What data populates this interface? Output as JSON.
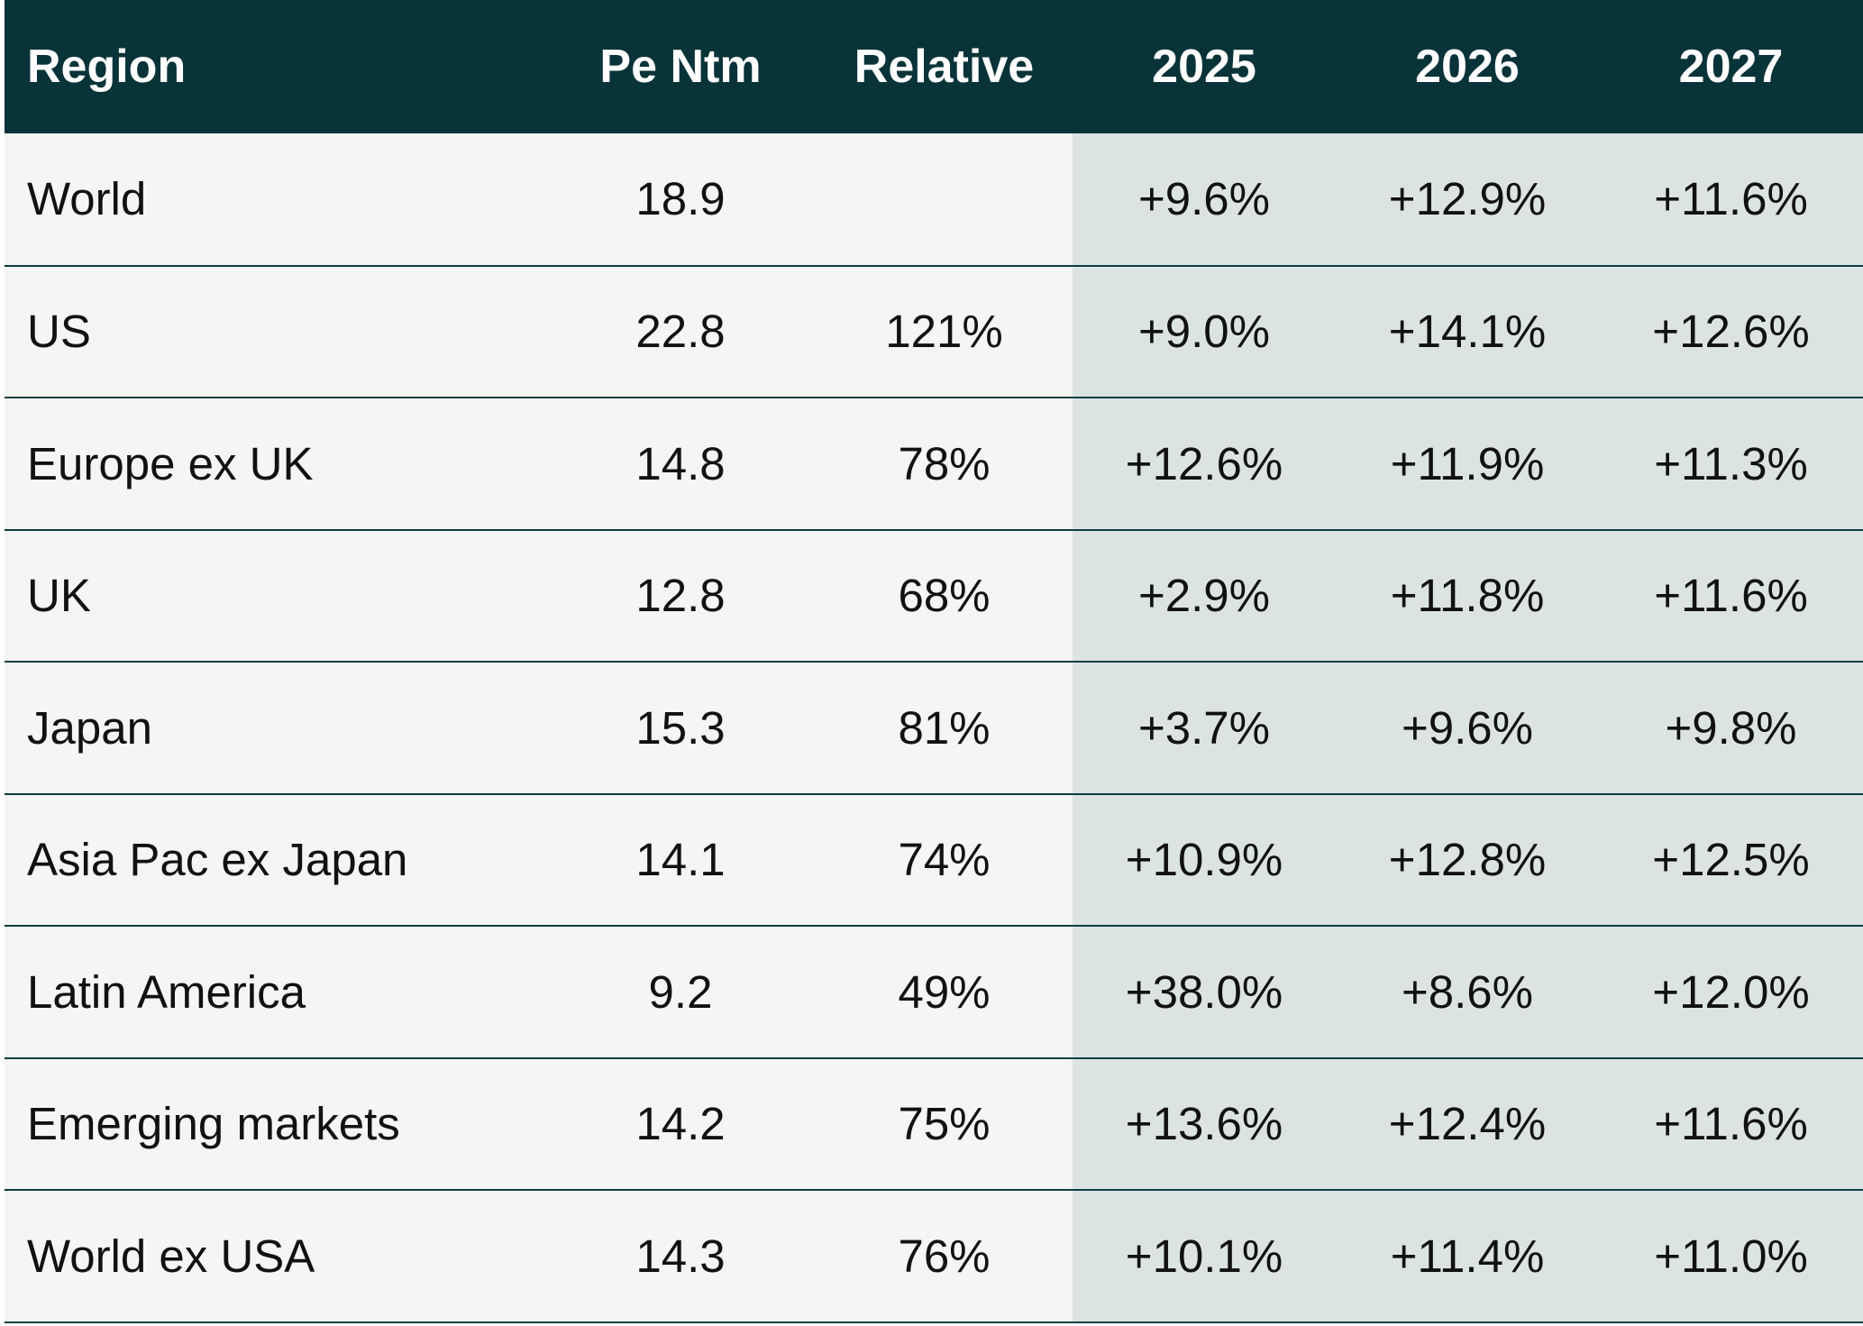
{
  "chart_data": {
    "type": "table",
    "columns": [
      "Region",
      "Pe Ntm",
      "Relative",
      "2025",
      "2026",
      "2027"
    ],
    "rows": [
      {
        "region": "World",
        "pe_ntm": "18.9",
        "relative": "",
        "y2025": "+9.6%",
        "y2026": "+12.9%",
        "y2027": "+11.6%"
      },
      {
        "region": "US",
        "pe_ntm": "22.8",
        "relative": "121%",
        "y2025": "+9.0%",
        "y2026": "+14.1%",
        "y2027": "+12.6%"
      },
      {
        "region": "Europe ex UK",
        "pe_ntm": "14.8",
        "relative": "78%",
        "y2025": "+12.6%",
        "y2026": "+11.9%",
        "y2027": "+11.3%"
      },
      {
        "region": "UK",
        "pe_ntm": "12.8",
        "relative": "68%",
        "y2025": "+2.9%",
        "y2026": "+11.8%",
        "y2027": "+11.6%"
      },
      {
        "region": "Japan",
        "pe_ntm": "15.3",
        "relative": "81%",
        "y2025": "+3.7%",
        "y2026": "+9.6%",
        "y2027": "+9.8%"
      },
      {
        "region": "Asia Pac ex Japan",
        "pe_ntm": "14.1",
        "relative": "74%",
        "y2025": "+10.9%",
        "y2026": "+12.8%",
        "y2027": "+12.5%"
      },
      {
        "region": "Latin America",
        "pe_ntm": "9.2",
        "relative": "49%",
        "y2025": "+38.0%",
        "y2026": "+8.6%",
        "y2027": "+12.0%"
      },
      {
        "region": "Emerging markets",
        "pe_ntm": "14.2",
        "relative": "75%",
        "y2025": "+13.6%",
        "y2026": "+12.4%",
        "y2027": "+11.6%"
      },
      {
        "region": "World ex USA",
        "pe_ntm": "14.3",
        "relative": "76%",
        "y2025": "+10.1%",
        "y2026": "+11.4%",
        "y2027": "+11.0%"
      }
    ]
  },
  "colors": {
    "header_bg": "#083339",
    "header_text": "#ffffff",
    "row_bg": "#f3f6f3",
    "year_col_bg": "#dce4e3",
    "divider": "#0e3d42"
  }
}
